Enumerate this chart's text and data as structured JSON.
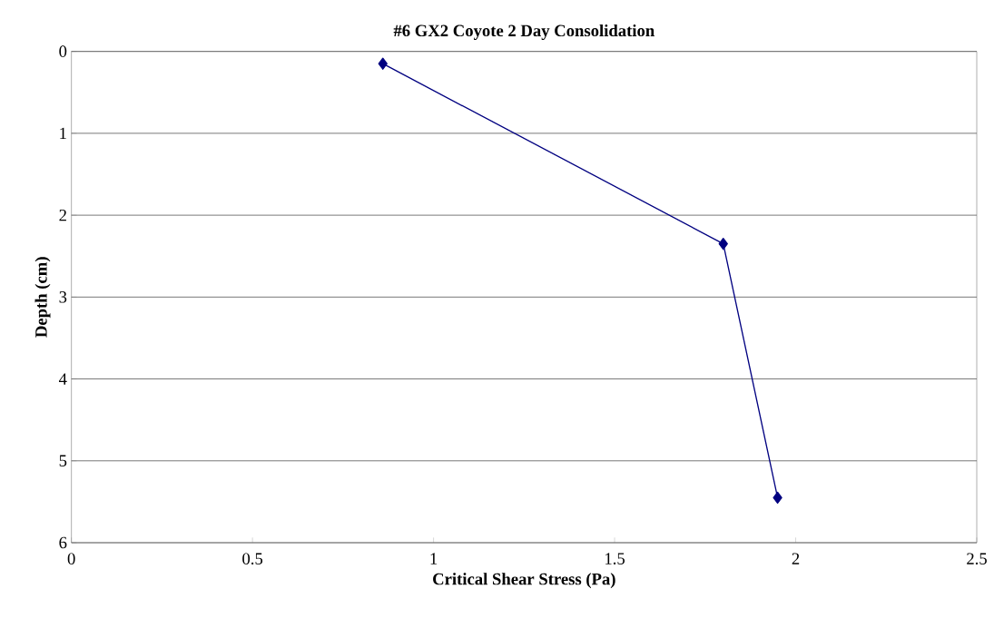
{
  "chart_data": {
    "type": "line",
    "title": "#6 GX2 Coyote 2 Day Consolidation",
    "xlabel": "Critical Shear Stress (Pa)",
    "ylabel": "Depth (cm)",
    "series": [
      {
        "color": "#000080",
        "x": [
          0.86,
          1.8,
          1.95
        ],
        "values": [
          0.15,
          2.35,
          5.45
        ]
      }
    ],
    "xlim": [
      0,
      2.5
    ],
    "xticks": [
      0,
      0.5,
      1,
      1.5,
      2,
      2.5
    ],
    "ylim": [
      6,
      0
    ],
    "yticks": [
      0,
      1,
      2,
      3,
      4,
      5,
      6
    ],
    "grid": "y",
    "marker": "diamond",
    "line_style": "solid"
  }
}
